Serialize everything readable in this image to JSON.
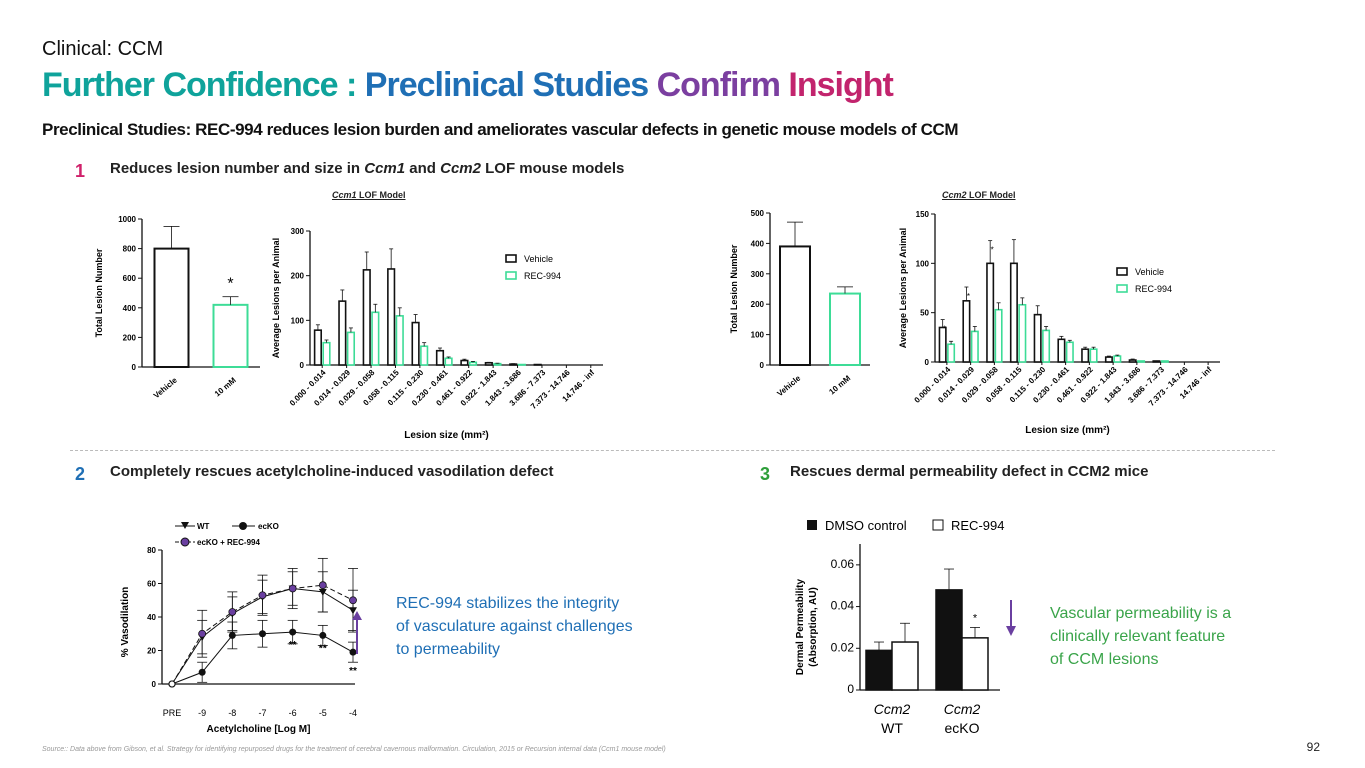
{
  "header": {
    "section": "Clinical: CCM",
    "title_part1": "Further Confidence :",
    "title_part2": "Preclinical Studies",
    "title_part3": "Confirm",
    "title_part4": "Insight",
    "subtitle": "Preclinical Studies: REC-994 reduces lesion burden and ameliorates vascular defects in genetic mouse models of CCM"
  },
  "points": [
    {
      "number": "1",
      "text_a": "Reduces lesion number and size in ",
      "gene1": "Ccm1",
      "text_b": " and ",
      "gene2": "Ccm2",
      "text_c": " LOF mouse models"
    },
    {
      "number": "2",
      "text": "Completely rescues acetylcholine-induced vasodilation defect"
    },
    {
      "number": "3",
      "text": "Rescues dermal permeability defect in CCM2 mice"
    }
  ],
  "callouts": {
    "vasodilation": [
      "REC-994 stabilizes the integrity",
      "of vasculature against challenges",
      "to permeability"
    ],
    "permeability": [
      "Vascular permeability is a",
      "clinically relevant feature",
      "of CCM lesions"
    ]
  },
  "footer": {
    "source": "Source:: Data above from Gibson, et al. Strategy for identifying repurposed drugs for the treatment of cerebral cavernous malformation. Circulation, 2015 or Recursion internal data (Ccm1 mouse model)",
    "page": "92"
  },
  "panel_titles": {
    "ccm1": {
      "gene": "Ccm1",
      "suffix": " LOF Model"
    },
    "ccm2": {
      "gene": "Ccm2",
      "suffix": " LOF Model"
    }
  },
  "colors": {
    "vehicle": "#111111",
    "rec994": "#3ddc97",
    "purple": "#6a3fa0",
    "teal": "#0fa39b",
    "blue": "#1f6fb5",
    "magenta": "#c2246d",
    "green": "#3aa44a"
  },
  "chart_data": [
    {
      "id": "ccm1_total",
      "type": "bar",
      "title": "",
      "ylabel": "Total Lesion Number",
      "categories": [
        "Vehicle",
        "10 mM"
      ],
      "values": [
        800,
        420
      ],
      "errors": [
        150,
        55
      ],
      "colors": [
        "#111111",
        "#3ddc97"
      ],
      "ylim": [
        0,
        1000
      ],
      "yticks": [
        0,
        200,
        400,
        600,
        800,
        1000
      ],
      "annotations": [
        "",
        "*"
      ]
    },
    {
      "id": "ccm1_size",
      "type": "bar",
      "title": "",
      "xlabel": "Lesion size (mm²)",
      "ylabel": "Average Lesions per Animal",
      "categories": [
        "0.000 - 0.014",
        "0.014 - 0.029",
        "0.029 - 0.058",
        "0.058 - 0.115",
        "0.115 - 0.230",
        "0.230 - 0.461",
        "0.461 - 0.922",
        "0.922 - 1.843",
        "1.843 - 3.686",
        "3.686 - 7.373",
        "7.373 - 14.746",
        "14.746 - inf"
      ],
      "ylim": [
        0,
        300
      ],
      "yticks": [
        0,
        100,
        200,
        300
      ],
      "legend": "right",
      "series": [
        {
          "name": "Vehicle",
          "values": [
            78,
            143,
            213,
            215,
            95,
            32,
            10,
            5,
            2,
            1,
            0,
            0
          ],
          "errors": [
            12,
            25,
            40,
            45,
            18,
            6,
            3,
            1,
            1,
            0,
            0,
            0
          ],
          "color": "#111111"
        },
        {
          "name": "REC-994",
          "values": [
            50,
            73,
            118,
            110,
            42,
            15,
            6,
            3,
            1,
            0,
            0,
            0
          ],
          "errors": [
            6,
            10,
            18,
            18,
            8,
            3,
            2,
            1,
            0,
            0,
            0,
            0
          ],
          "color": "#3ddc97"
        }
      ],
      "annotations": []
    },
    {
      "id": "ccm2_total",
      "type": "bar",
      "title": "",
      "ylabel": "Total Lesion Number",
      "categories": [
        "Vehicle",
        "10 mM"
      ],
      "values": [
        390,
        235
      ],
      "errors": [
        80,
        22
      ],
      "colors": [
        "#111111",
        "#3ddc97"
      ],
      "ylim": [
        0,
        500
      ],
      "yticks": [
        0,
        100,
        200,
        300,
        400,
        500
      ],
      "annotations": [
        "",
        ""
      ]
    },
    {
      "id": "ccm2_size",
      "type": "bar",
      "title": "",
      "xlabel": "Lesion size (mm²)",
      "ylabel": "Average Lesions per Animal",
      "categories": [
        "0.000 - 0.014",
        "0.014 - 0.029",
        "0.029 - 0.058",
        "0.058 - 0.115",
        "0.115 - 0.230",
        "0.230 - 0.461",
        "0.461 - 0.922",
        "0.922 - 1.843",
        "1.843 - 3.686",
        "3.686 - 7.373",
        "7.373 - 14.746",
        "14.746 - inf"
      ],
      "ylim": [
        0,
        150
      ],
      "yticks": [
        0,
        50,
        100,
        150
      ],
      "legend": "right",
      "series": [
        {
          "name": "Vehicle",
          "values": [
            35,
            62,
            100,
            100,
            48,
            23,
            13,
            5,
            2,
            1,
            0,
            0
          ],
          "errors": [
            8,
            14,
            23,
            24,
            9,
            3,
            2,
            1,
            1,
            0,
            0,
            0
          ],
          "color": "#111111"
        },
        {
          "name": "REC-994",
          "values": [
            18,
            31,
            53,
            58,
            32,
            20,
            13,
            6,
            1,
            1,
            0,
            0
          ],
          "errors": [
            3,
            5,
            7,
            7,
            4,
            2,
            2,
            1,
            0,
            0,
            0,
            0
          ],
          "color": "#3ddc97"
        }
      ],
      "annotations": [
        "*",
        "*",
        "*",
        "",
        "",
        "",
        "",
        "",
        "",
        "",
        "",
        ""
      ]
    },
    {
      "id": "vasodilation",
      "type": "line",
      "title": "",
      "xlabel": "Acetylcholine [Log M]",
      "ylabel": "% Vasodilation",
      "categories": [
        "PRE",
        "-9",
        "-8",
        "-7",
        "-6",
        "-5",
        "-4"
      ],
      "ylim": [
        0,
        80
      ],
      "yticks": [
        0,
        20,
        40,
        60,
        80
      ],
      "series": [
        {
          "name": "WT",
          "values": [
            0,
            28,
            42,
            52,
            57,
            55,
            44
          ],
          "errors": [
            0,
            10,
            10,
            10,
            10,
            12,
            12
          ],
          "marker": "triangle-down",
          "color": "#111111"
        },
        {
          "name": "ecKO",
          "values": [
            0,
            7,
            29,
            30,
            31,
            29,
            19
          ],
          "errors": [
            0,
            6,
            8,
            8,
            7,
            6,
            6
          ],
          "marker": "circle",
          "color": "#111111"
        },
        {
          "name": "ecKO + REC-994",
          "values": [
            0,
            30,
            43,
            53,
            57,
            59,
            50
          ],
          "errors": [
            0,
            14,
            12,
            12,
            12,
            16,
            19
          ],
          "marker": "circle-purple",
          "color": "#6a3fa0"
        }
      ],
      "annotations": [
        "",
        "",
        "",
        "",
        "**",
        "**",
        "**"
      ]
    },
    {
      "id": "permeability",
      "type": "bar",
      "title": "",
      "ylabel": "Dermal Permeability (Absorption, AU)",
      "categories": [
        "Ccm2 WT",
        "Ccm2 ecKO"
      ],
      "category_lines": [
        [
          "Ccm2",
          "WT"
        ],
        [
          "Ccm2",
          "ecKO"
        ]
      ],
      "ylim": [
        0,
        0.07
      ],
      "yticks": [
        0,
        0.02,
        0.04,
        0.06
      ],
      "ytick_labels": [
        "0",
        "0.02",
        "0.04",
        "0.06"
      ],
      "legend": "top",
      "series": [
        {
          "name": "DMSO control",
          "values": [
            0.019,
            0.048
          ],
          "errors": [
            0.004,
            0.01
          ],
          "color": "#111111"
        },
        {
          "name": "REC-994",
          "values": [
            0.023,
            0.025
          ],
          "errors": [
            0.009,
            0.005
          ],
          "color": "#ffffff"
        }
      ],
      "annotations": [
        "",
        "*"
      ]
    }
  ]
}
